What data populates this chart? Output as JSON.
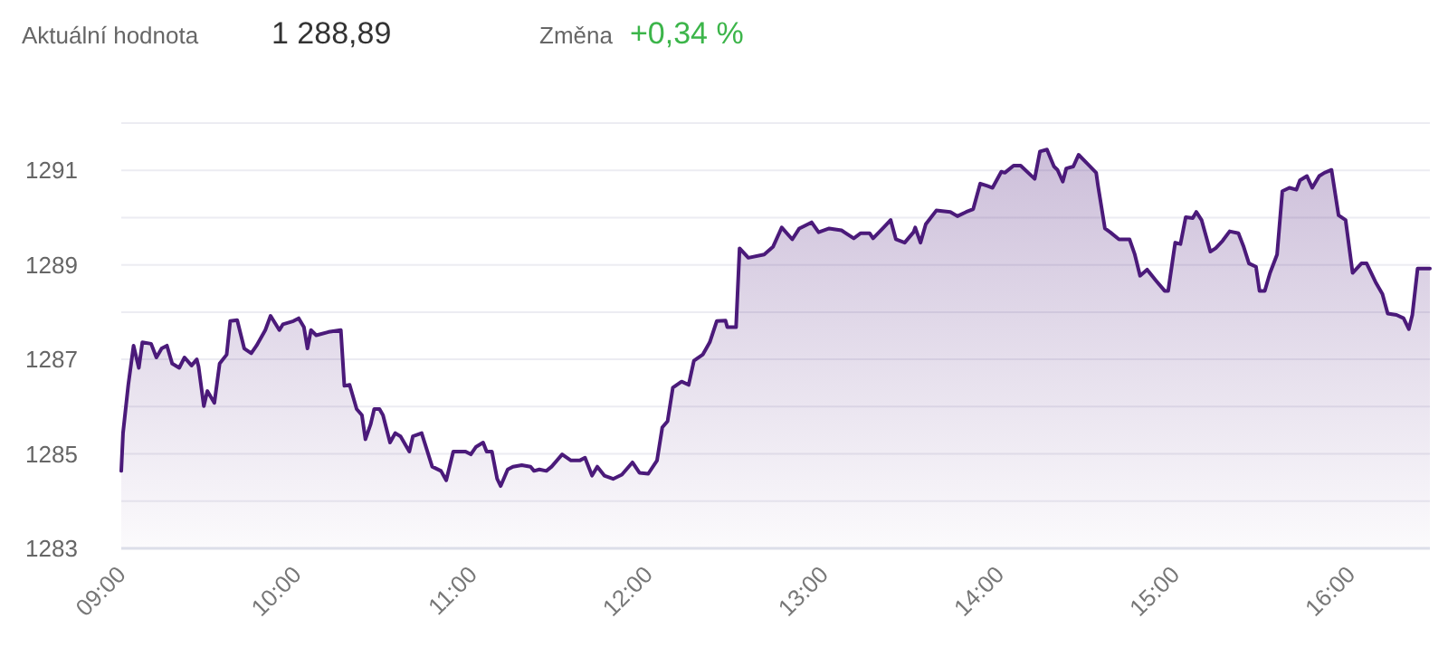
{
  "chart_data": {
    "type": "area",
    "annotations": [
      "Aktuální hodnota",
      "1 288,89",
      "Změna",
      "+0,34 %"
    ],
    "xlim": [
      9,
      16.45
    ],
    "xticks": [
      {
        "value": 9,
        "label": "09:00"
      },
      {
        "value": 10,
        "label": "10:00"
      },
      {
        "value": 11,
        "label": "11:00"
      },
      {
        "value": 12,
        "label": "12:00"
      },
      {
        "value": 13,
        "label": "13:00"
      },
      {
        "value": 14,
        "label": "14:00"
      },
      {
        "value": 15,
        "label": "15:00"
      },
      {
        "value": 16,
        "label": "16:00"
      }
    ],
    "ylim": [
      1283,
      1292
    ],
    "yticks": [
      1283,
      {
        "value": 1284,
        "label": null
      },
      1285,
      {
        "value": 1286,
        "label": null
      },
      1287,
      {
        "value": 1288,
        "label": null
      },
      1289,
      {
        "value": 1290,
        "label": null
      },
      1291,
      {
        "value": 1292,
        "label": null
      }
    ],
    "grid": "y",
    "line_style": "solid",
    "series": [
      {
        "color": "#4b1a7a",
        "x": [
          9.0,
          9.01,
          9.04,
          9.07,
          9.1,
          9.12,
          9.17,
          9.2,
          9.23,
          9.26,
          9.29,
          9.33,
          9.36,
          9.4,
          9.43,
          9.44,
          9.47,
          9.49,
          9.53,
          9.56,
          9.6,
          9.62,
          9.66,
          9.7,
          9.74,
          9.77,
          9.82,
          9.85,
          9.9,
          9.92,
          9.98,
          10.01,
          10.04,
          10.06,
          10.08,
          10.11,
          10.18,
          10.25,
          10.27,
          10.3,
          10.34,
          10.37,
          10.39,
          10.42,
          10.44,
          10.47,
          10.49,
          10.53,
          10.56,
          10.59,
          10.64,
          10.66,
          10.71,
          10.77,
          10.82,
          10.85,
          10.89,
          10.96,
          10.99,
          11.02,
          11.06,
          11.08,
          11.11,
          11.14,
          11.16,
          11.2,
          11.23,
          11.28,
          11.33,
          11.35,
          11.38,
          11.42,
          11.45,
          11.51,
          11.56,
          11.61,
          11.64,
          11.68,
          11.71,
          11.75,
          11.8,
          11.85,
          11.91,
          11.95,
          12.0,
          12.05,
          12.08,
          12.11,
          12.14,
          12.19,
          12.23,
          12.26,
          12.31,
          12.35,
          12.39,
          12.44,
          12.45,
          12.5,
          12.52,
          12.57,
          12.66,
          12.71,
          12.76,
          12.82,
          12.86,
          12.93,
          12.97,
          13.03,
          13.1,
          13.17,
          13.21,
          13.26,
          13.28,
          13.34,
          13.38,
          13.41,
          13.46,
          13.51,
          13.52,
          13.55,
          13.58,
          13.64,
          13.72,
          13.76,
          13.81,
          13.85,
          13.89,
          13.93,
          13.96,
          14.01,
          14.03,
          14.08,
          14.12,
          14.2,
          14.23,
          14.27,
          14.31,
          14.33,
          14.36,
          14.38,
          14.42,
          14.45,
          14.5,
          14.55,
          14.56,
          14.6,
          14.63,
          14.68,
          14.74,
          14.77,
          14.8,
          14.84,
          14.89,
          14.94,
          14.96,
          15.0,
          15.03,
          15.06,
          15.1,
          15.12,
          15.15,
          15.2,
          15.23,
          15.27,
          15.31,
          15.36,
          15.39,
          15.42,
          15.46,
          15.48,
          15.51,
          15.54,
          15.58,
          15.61,
          15.65,
          15.69,
          15.71,
          15.75,
          15.78,
          15.82,
          15.85,
          15.89,
          15.93,
          15.97,
          16.01,
          16.06,
          16.09,
          16.14,
          16.18,
          16.21,
          16.26,
          16.3,
          16.33,
          16.35,
          16.38,
          16.45
        ],
        "values": [
          1284.64,
          1285.44,
          1286.46,
          1287.29,
          1286.82,
          1287.36,
          1287.33,
          1287.04,
          1287.23,
          1287.29,
          1286.91,
          1286.82,
          1287.04,
          1286.87,
          1287.0,
          1286.85,
          1286.01,
          1286.33,
          1286.08,
          1286.91,
          1287.1,
          1287.81,
          1287.83,
          1287.23,
          1287.13,
          1287.29,
          1287.62,
          1287.92,
          1287.62,
          1287.74,
          1287.81,
          1287.87,
          1287.68,
          1287.23,
          1287.62,
          1287.51,
          1287.58,
          1287.62,
          1286.44,
          1286.46,
          1285.95,
          1285.82,
          1285.31,
          1285.63,
          1285.95,
          1285.95,
          1285.82,
          1285.24,
          1285.44,
          1285.37,
          1285.05,
          1285.37,
          1285.44,
          1284.73,
          1284.64,
          1284.44,
          1285.05,
          1285.05,
          1284.99,
          1285.15,
          1285.24,
          1285.05,
          1285.05,
          1284.47,
          1284.32,
          1284.67,
          1284.73,
          1284.76,
          1284.73,
          1284.64,
          1284.67,
          1284.64,
          1284.73,
          1284.99,
          1284.86,
          1284.86,
          1284.92,
          1284.54,
          1284.73,
          1284.54,
          1284.47,
          1284.56,
          1284.82,
          1284.6,
          1284.58,
          1284.86,
          1285.56,
          1285.69,
          1286.4,
          1286.53,
          1286.46,
          1286.97,
          1287.1,
          1287.36,
          1287.81,
          1287.82,
          1287.68,
          1287.68,
          1289.35,
          1289.15,
          1289.22,
          1289.38,
          1289.79,
          1289.54,
          1289.77,
          1289.9,
          1289.69,
          1289.77,
          1289.73,
          1289.56,
          1289.67,
          1289.67,
          1289.56,
          1289.79,
          1289.95,
          1289.54,
          1289.47,
          1289.69,
          1289.79,
          1289.47,
          1289.86,
          1290.15,
          1290.12,
          1290.03,
          1290.12,
          1290.18,
          1290.72,
          1290.67,
          1290.63,
          1290.97,
          1290.95,
          1291.1,
          1291.1,
          1290.82,
          1291.4,
          1291.44,
          1291.08,
          1291.01,
          1290.76,
          1291.04,
          1291.08,
          1291.33,
          1291.14,
          1290.95,
          1290.69,
          1289.77,
          1289.69,
          1289.54,
          1289.54,
          1289.22,
          1288.77,
          1288.9,
          1288.67,
          1288.45,
          1288.45,
          1289.47,
          1289.44,
          1290.01,
          1289.99,
          1290.12,
          1289.95,
          1289.28,
          1289.35,
          1289.51,
          1289.71,
          1289.67,
          1289.38,
          1289.03,
          1288.96,
          1288.45,
          1288.45,
          1288.83,
          1289.22,
          1290.56,
          1290.63,
          1290.59,
          1290.79,
          1290.88,
          1290.63,
          1290.88,
          1290.95,
          1291.01,
          1290.05,
          1289.95,
          1288.83,
          1289.03,
          1289.03,
          1288.64,
          1288.38,
          1287.97,
          1287.94,
          1287.87,
          1287.64,
          1287.94,
          1288.92,
          1288.92
        ]
      }
    ]
  }
}
